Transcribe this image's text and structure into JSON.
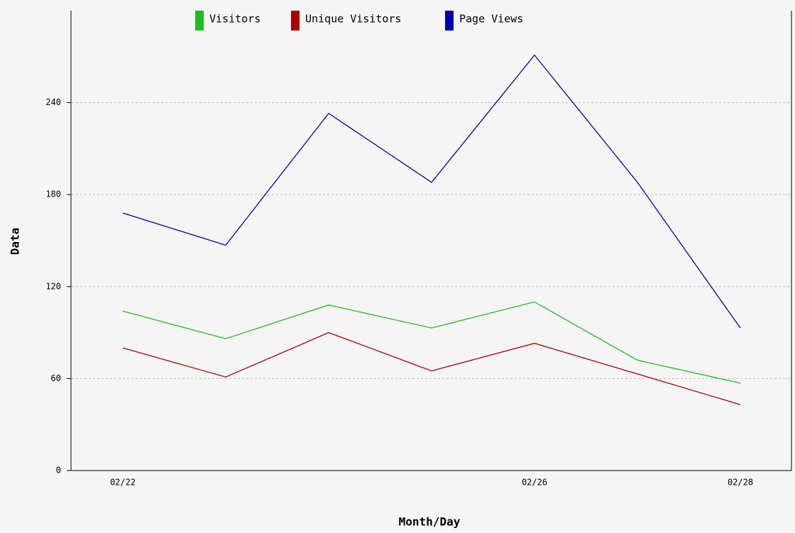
{
  "chart_data": {
    "type": "line",
    "x_label": "Month/Day",
    "y_label": "Data",
    "categories": [
      "02/22",
      null,
      null,
      null,
      "02/26",
      null,
      "02/28"
    ],
    "series": [
      {
        "name": "Visitors",
        "color": "#22bb22",
        "values": [
          104,
          86,
          108,
          93,
          110,
          72,
          57
        ]
      },
      {
        "name": "Unique Visitors",
        "color": "#aa0000",
        "values": [
          80,
          61,
          90,
          65,
          83,
          63,
          43
        ]
      },
      {
        "name": "Page Views",
        "color": "#0000aa",
        "values": [
          168,
          147,
          233,
          188,
          271,
          188,
          93
        ]
      }
    ],
    "ylim": [
      0,
      300
    ],
    "yticks": [
      0,
      60,
      120,
      180,
      240
    ],
    "grid": true,
    "legend": "top"
  }
}
